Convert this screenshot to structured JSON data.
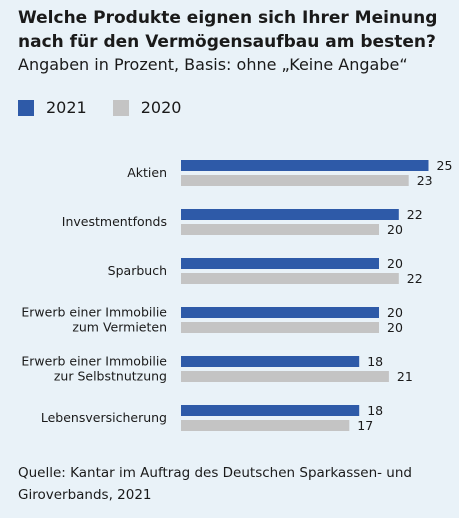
{
  "header": {
    "title": "Welche Produkte eignen sich Ihrer Meinung nach für den Vermögensaufbau am besten?",
    "subtitle": "Angaben in Prozent, Basis: ohne „Keine Angabe“"
  },
  "source": "Quelle: Kantar im Auftrag des Deutschen Sparkassen- und Giroverbands, 2021",
  "colors": {
    "s2021": "#2e5aa8",
    "s2020": "#c4c4c4"
  },
  "chart_data": {
    "type": "bar",
    "orientation": "horizontal",
    "categories": [
      [
        "Aktien"
      ],
      [
        "Investmentfonds"
      ],
      [
        "Sparbuch"
      ],
      [
        "Erwerb einer Immobilie",
        "zum Vermieten"
      ],
      [
        "Erwerb einer Immobilie",
        "zur Selbstnutzung"
      ],
      [
        "Lebensversicherung"
      ]
    ],
    "series": [
      {
        "name": "2021",
        "values": [
          25,
          22,
          20,
          20,
          18,
          18
        ]
      },
      {
        "name": "2020",
        "values": [
          23,
          20,
          22,
          20,
          21,
          17
        ]
      }
    ],
    "xlim": [
      0,
      25
    ],
    "grid": false,
    "legend": "top-left"
  }
}
